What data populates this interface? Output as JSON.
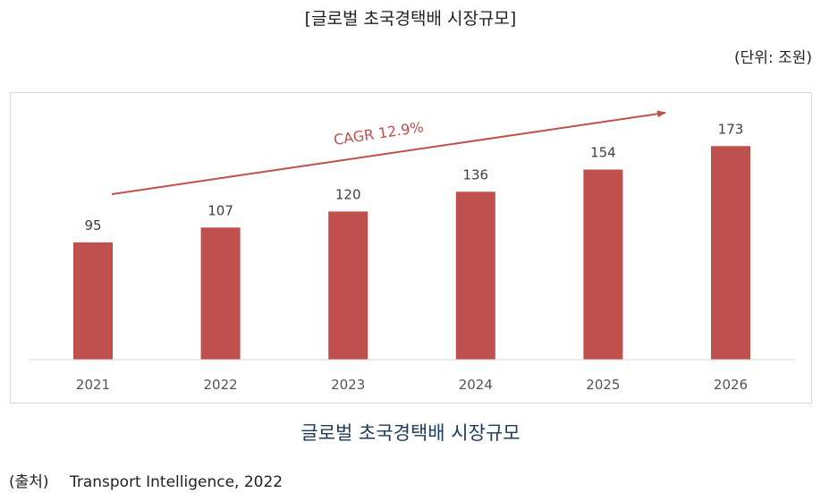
{
  "header": {
    "title": "[글로벌 초국경택배 시장규모]",
    "unit": "(단위: 조원)"
  },
  "caption": "글로벌 초국경택배 시장규모",
  "source": {
    "label": "(출처)",
    "text": "Transport Intelligence, 2022"
  },
  "colors": {
    "bar": "#c0504d",
    "axis": "#d9d9d9",
    "caption": "#1f3b57"
  },
  "chart_data": {
    "type": "bar",
    "categories": [
      "2021",
      "2022",
      "2023",
      "2024",
      "2025",
      "2026"
    ],
    "values": [
      95,
      107,
      120,
      136,
      154,
      173
    ],
    "value_labels": [
      "95",
      "107",
      "120",
      "136",
      "154",
      "173"
    ],
    "annotation": "CAGR 12.9%",
    "ylim": [
      0,
      200
    ],
    "grid": false,
    "legend": "none"
  }
}
